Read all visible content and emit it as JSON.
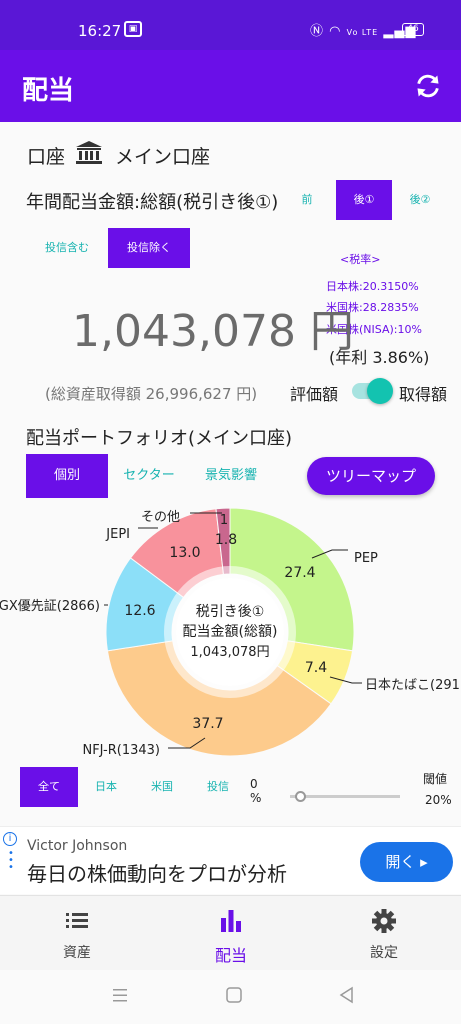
{
  "status_bar": {
    "time": "16:27",
    "network": "Vo LTE",
    "battery": "46"
  },
  "app_bar": {
    "title": "配当"
  },
  "account": {
    "label": "口座",
    "name": "メイン口座"
  },
  "annual": {
    "title": "年間配当金額:総額(税引き後①)",
    "tax_options": [
      "前",
      "後①",
      "後②"
    ],
    "tax_selected": "後①",
    "fund_options": [
      "投信含む",
      "投信除く"
    ],
    "fund_selected": "投信除く",
    "amount": "1,043,078 円",
    "tax_rate_title": "<税率>",
    "tax_rates": [
      "日本株:20.3150%",
      "米国株:28.2835%",
      "米国株(NISA):10%"
    ],
    "yield": "(年利 3.86%)",
    "total_cost": "(総資産取得額 26,996,627 円)",
    "toggle_left": "評価額",
    "toggle_right": "取得額"
  },
  "portfolio": {
    "title": "配当ポートフォリオ(メイン口座)",
    "tabs": [
      "個別",
      "セクター",
      "景気影響"
    ],
    "tab_selected": "個別",
    "treemap_button": "ツリーマップ"
  },
  "chart_data": {
    "type": "pie",
    "center_label": [
      "税引き後①",
      "配当金額(総額)",
      "1,043,078円"
    ],
    "slices": [
      {
        "name": "PEP",
        "value": 27.4,
        "color": "#c4f58c"
      },
      {
        "name": "日本たばこ(291",
        "value": 7.4,
        "color": "#fdf28f"
      },
      {
        "name": "NFJ-R(1343)",
        "value": 37.7,
        "color": "#fdcb8c"
      },
      {
        "name": "GX優先証(2866)",
        "value": 12.6,
        "color": "#8cdff8"
      },
      {
        "name": "JEPI",
        "value": 13.0,
        "color": "#f8929c"
      },
      {
        "name": "その他",
        "value": 1.8,
        "color": "#c9678e"
      }
    ],
    "slice_labels": [
      "27.4",
      "7.4",
      "37.7",
      "12.6",
      "13.0",
      "1.8"
    ],
    "extra_label": "1"
  },
  "filters": {
    "options": [
      "全て",
      "日本",
      "米国",
      "投信"
    ],
    "selected": "全て",
    "slider_min": "0",
    "slider_unit": "%",
    "threshold_label": "閾値",
    "threshold_value": "20%"
  },
  "ad": {
    "advertiser": "Victor Johnson",
    "headline": "毎日の株価動向をプロが分析",
    "cta": "開く ▸"
  },
  "bottom_nav": {
    "items": [
      {
        "label": "資産",
        "icon": "list-icon"
      },
      {
        "label": "配当",
        "icon": "bar-chart-icon"
      },
      {
        "label": "設定",
        "icon": "gear-icon"
      }
    ],
    "selected": "配当"
  },
  "colors": {
    "primary": "#6a0fe8",
    "status": "#5a17d6",
    "accent": "#17b3b0"
  }
}
